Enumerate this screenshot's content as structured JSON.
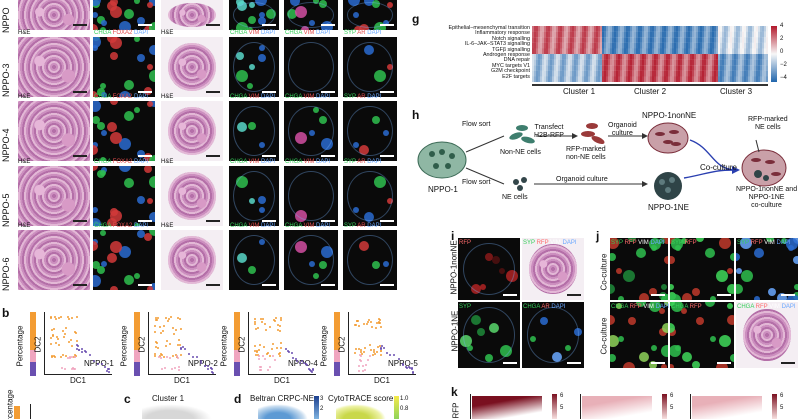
{
  "rows": [
    "NPPO-3",
    "NPPO-4",
    "NPPO-5",
    "NPPO-6"
  ],
  "top_row_partial": "NPPO",
  "tile_labels": {
    "he": "H&E",
    "chga_foxa2": [
      "CHGA",
      "FOXA2",
      "DAPI"
    ],
    "chga_vim": [
      "CHGA",
      "VIM",
      "DAPI"
    ],
    "syp_ar": [
      "SYP",
      "AR",
      "DAPI"
    ]
  },
  "panel_g": {
    "letter": "g",
    "pathways": [
      "Epithelial–mesenchymal transition",
      "Inflammatory response",
      "Notch signalling",
      "IL-6–JAK–STAT3 signalling",
      "TGFβ signalling",
      "Androgen response",
      "DNA repair",
      "MYC targets V1",
      "G2M checkpoint",
      "E2F targets"
    ],
    "clusters": [
      "Cluster 1",
      "Cluster 2",
      "Cluster 3"
    ],
    "scale_ticks": [
      "4",
      "2",
      "0",
      "−2",
      "−4"
    ]
  },
  "panel_h": {
    "letter": "h",
    "steps": {
      "flow_sort_1": "Flow sort",
      "flow_sort_2": "Flow sort",
      "non_ne": "Non-NE cells",
      "ne": "NE cells",
      "transfect": "Transfect\nH2B-RFP",
      "rfp_nonne": "RFP-marked\nnon-NE cells",
      "organoid_culture_1": "Organoid\nculture",
      "organoid_culture_2": "Organoid culture",
      "nppo1nonne": "NPPO-1nonNE",
      "nppo1ne": "NPPO-1NE",
      "coculture": "Co-culture",
      "rfp_ne": "RFP-marked\nNE cells",
      "result": "NPPO-1nonNE and\nNPPO-1NE\nco-culture",
      "source": "NPPO-1"
    }
  },
  "panel_i": {
    "letter": "i",
    "rows": [
      "NPPO-1nonNE",
      "NPPO-1NE"
    ],
    "top_labels": [
      "RFP",
      "SYP RFP VIM DAPI"
    ],
    "bottom_labels": [
      "SYP",
      "CHGA AR DAPI"
    ]
  },
  "panel_j": {
    "letter": "j",
    "rows": [
      "Co-culture",
      "Co-culture"
    ],
    "top_labels": [
      "SYP RFP VIM DAPI",
      "SYP RFP",
      "SYP RFP VIM DAPI"
    ],
    "bottom_labels": [
      "CHGA RFP VIM DAPI",
      "CHGA RFP",
      "CHGA RFP VIM DAPI"
    ]
  },
  "panel_b": {
    "letter": "b",
    "ylabel_left": "Percentage",
    "dc_x": "DC1",
    "dc_y": "DC2",
    "plots": [
      "NPPO-1",
      "NPPO-2",
      "NPPO-4",
      "NPPO-5"
    ]
  },
  "panel_c": {
    "letter": "c",
    "title": "Cluster 1"
  },
  "panel_d": {
    "letter": "d",
    "title1": "Beltran CRPC-NE",
    "title2": "CytoTRACE score",
    "ticks": [
      "3",
      "2",
      "1.0",
      "0.8"
    ]
  },
  "panel_k": {
    "letter": "k",
    "ylabel": "RFP",
    "ticks": [
      "6",
      "5",
      "6",
      "5",
      "6",
      "5"
    ]
  },
  "colors": {
    "orange": "#f39c33",
    "purple": "#6a4fb0",
    "pink": "#f0a5bf",
    "heat_red": "#b2182b",
    "heat_blue": "#2166ac"
  }
}
